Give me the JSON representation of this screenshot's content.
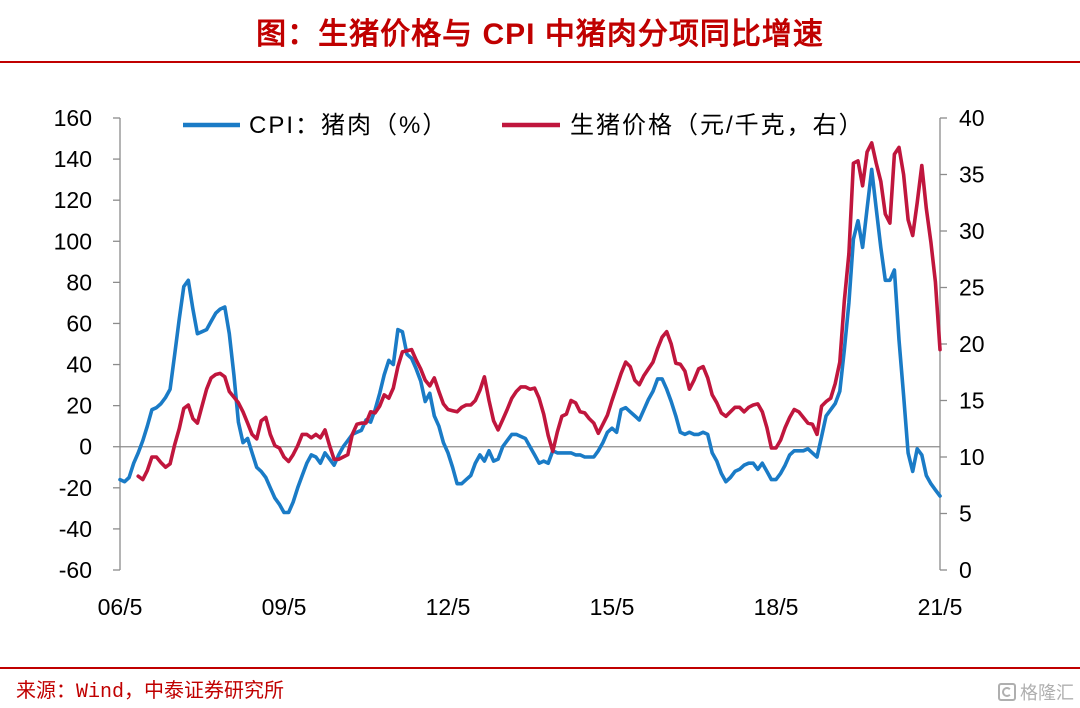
{
  "chart_data": {
    "type": "line",
    "title": "图：生猪价格与 CPI 中猪肉分项同比增速",
    "xlabel": "",
    "ylabel": "",
    "y2label": "",
    "grid": false,
    "legend": "top",
    "x_range": [
      {
        "year": 2006,
        "month": 5
      },
      {
        "year": 2021,
        "month": 5
      }
    ],
    "x_ticks": [
      {
        "label": "06/5",
        "year": 2006,
        "month": 5
      },
      {
        "label": "09/5",
        "year": 2009,
        "month": 5
      },
      {
        "label": "12/5",
        "year": 2012,
        "month": 5
      },
      {
        "label": "15/5",
        "year": 2015,
        "month": 5
      },
      {
        "label": "18/5",
        "year": 2018,
        "month": 5
      },
      {
        "label": "21/5",
        "year": 2021,
        "month": 5
      }
    ],
    "y_left": {
      "range": [
        -60,
        160
      ],
      "ticks": [
        -60,
        -40,
        -20,
        0,
        20,
        40,
        60,
        80,
        100,
        120,
        140,
        160
      ]
    },
    "y_right": {
      "range": [
        0,
        40
      ],
      "ticks": [
        0,
        5,
        10,
        15,
        20,
        25,
        30,
        35,
        40
      ]
    },
    "series": [
      {
        "name": "CPI：猪肉（%）",
        "secondary_axis": false,
        "color": "#1a7bc6",
        "start": {
          "year": 2006,
          "month": 5
        },
        "values": [
          -16,
          -17,
          -15,
          -8,
          -3,
          3,
          10,
          18,
          19,
          21,
          24,
          28,
          45,
          62,
          78,
          81,
          67,
          55,
          56,
          57,
          61,
          65,
          67,
          68,
          55,
          35,
          12,
          2,
          4,
          -3,
          -10,
          -12,
          -15,
          -20,
          -25,
          -28,
          -32,
          -32,
          -27,
          -20,
          -14,
          -8,
          -4,
          -5,
          -8,
          -3,
          -6,
          -9,
          -4,
          0,
          3,
          6,
          7,
          8,
          13,
          12,
          18,
          26,
          35,
          42,
          40,
          57,
          56,
          45,
          43,
          38,
          32,
          22,
          26,
          15,
          10,
          2,
          -3,
          -10,
          -18,
          -18,
          -16,
          -14,
          -8,
          -4,
          -7,
          -2,
          -7,
          -6,
          0,
          3,
          6,
          6,
          5,
          4,
          0,
          -4,
          -8,
          -7,
          -8,
          -2,
          -3,
          -3,
          -3,
          -3,
          -4,
          -4,
          -5,
          -5,
          -5,
          -2,
          2,
          7,
          9,
          7,
          18,
          19,
          17,
          15,
          13,
          18,
          23,
          27,
          33,
          33,
          28,
          22,
          15,
          7,
          6,
          7,
          6,
          6,
          7,
          6,
          -3,
          -7,
          -13,
          -17,
          -15,
          -12,
          -11,
          -9,
          -8,
          -8,
          -11,
          -8,
          -12,
          -16,
          -16,
          -13,
          -9,
          -4,
          -2,
          -2,
          -2,
          -1,
          -3,
          -5,
          5,
          15,
          18,
          21,
          27,
          47,
          70,
          101,
          110,
          97,
          116,
          135,
          116,
          97,
          81,
          81,
          86,
          52,
          25,
          -3,
          -12,
          -1,
          -4,
          -14,
          -18,
          -21,
          -24
        ]
      },
      {
        "name": "生猪价格（元/千克，右）",
        "secondary_axis": true,
        "color": "#c0163d",
        "start": {
          "year": 2006,
          "month": 9
        },
        "values": [
          8.3,
          8.0,
          8.8,
          10.0,
          10.0,
          9.5,
          9.1,
          9.4,
          11.1,
          12.5,
          14.3,
          14.6,
          13.4,
          13.0,
          14.5,
          16.0,
          17.0,
          17.3,
          17.4,
          17.1,
          15.8,
          15.3,
          14.8,
          14.0,
          13.0,
          12.0,
          11.6,
          13.2,
          13.5,
          12.0,
          11.0,
          10.8,
          10.0,
          9.6,
          10.2,
          11.0,
          12.0,
          12.0,
          11.7,
          12.0,
          11.7,
          12.4,
          11.0,
          9.8,
          9.8,
          10.0,
          10.2,
          12.0,
          12.9,
          13.0,
          13.0,
          14.0,
          13.9,
          14.5,
          15.5,
          15.2,
          16.1,
          18.0,
          19.3,
          19.4,
          19.5,
          18.6,
          17.8,
          16.8,
          16.3,
          17.0,
          15.8,
          14.7,
          14.2,
          14.1,
          14.0,
          14.4,
          14.6,
          14.6,
          15.0,
          15.9,
          17.1,
          15.0,
          13.2,
          12.4,
          13.3,
          14.2,
          15.2,
          15.8,
          16.2,
          16.2,
          16.0,
          16.1,
          15.2,
          13.8,
          11.9,
          10.5,
          12.2,
          13.6,
          13.8,
          15.0,
          14.8,
          14.0,
          13.9,
          13.4,
          13.0,
          12.1,
          12.9,
          13.7,
          15.0,
          16.2,
          17.4,
          18.4,
          18.0,
          16.8,
          16.4,
          17.2,
          17.8,
          18.4,
          19.6,
          20.6,
          21.1,
          20.0,
          18.3,
          18.2,
          17.6,
          16.0,
          16.8,
          17.8,
          18.0,
          17.0,
          15.5,
          14.8,
          13.9,
          13.6,
          14.0,
          14.4,
          14.4,
          14.0,
          14.4,
          14.6,
          14.7,
          14.0,
          12.6,
          10.8,
          10.8,
          11.5,
          12.6,
          13.5,
          14.2,
          14.0,
          13.5,
          13.0,
          12.9,
          12.0,
          14.5,
          14.9,
          15.2,
          16.5,
          18.4,
          23.8,
          28.0,
          36.0,
          36.2,
          34.0,
          37.0,
          37.8,
          36.0,
          34.4,
          31.5,
          30.7,
          36.8,
          37.4,
          35.0,
          31.0,
          29.6,
          32.5,
          35.8,
          32.0,
          29.0,
          25.5,
          19.5
        ]
      }
    ]
  },
  "source": "来源：Wind，中泰证券研究所",
  "watermark": {
    "text": "格隆汇",
    "icon": "glh-logo-icon"
  },
  "colors": {
    "accent": "#c00000",
    "axis": "#8c8c8c",
    "text": "#000000"
  }
}
